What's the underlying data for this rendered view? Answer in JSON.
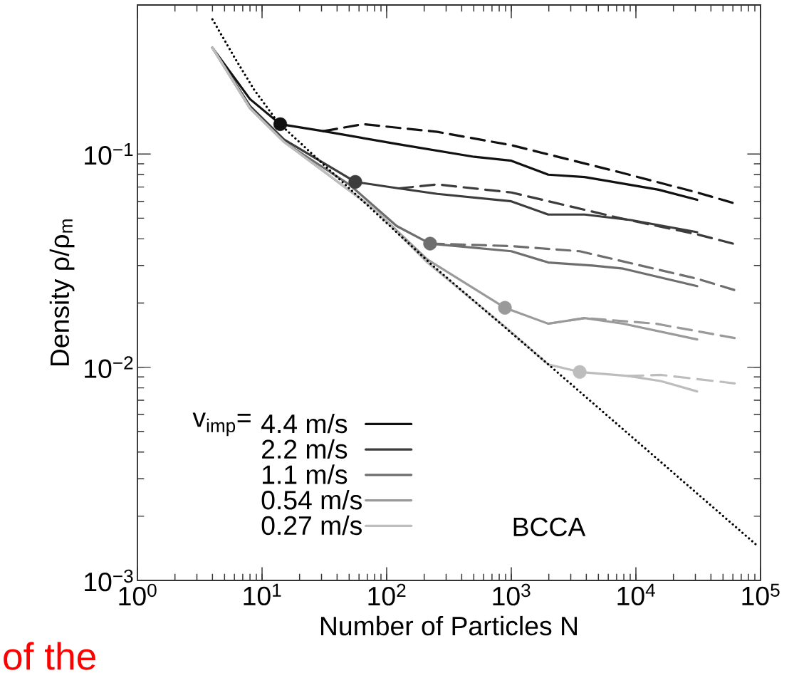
{
  "chart_data": {
    "type": "line",
    "xlabel": "Number of Particles N",
    "ylabel": "Density ρ/ρ$_{m}$",
    "legend_title": "v$_{imp}$=",
    "log": "xy",
    "xlim": [
      1,
      100000
    ],
    "ylim": [
      0.001,
      0.5
    ],
    "xticks": [
      {
        "value": 1,
        "label": "10$^{0}$"
      },
      {
        "value": 10,
        "label": "10$^{1}$"
      },
      {
        "value": 100,
        "label": "10$^{2}$"
      },
      {
        "value": 1000,
        "label": "10$^{3}$"
      },
      {
        "value": 10000,
        "label": "10$^{4}$"
      },
      {
        "value": 100000,
        "label": "10$^{5}$"
      }
    ],
    "yticks": [
      {
        "value": 0.001,
        "label": "10$^{−3}$"
      },
      {
        "value": 0.01,
        "label": "10$^{−2}$"
      },
      {
        "value": 0.1,
        "label": "10$^{−1}$"
      }
    ],
    "legend": "bottom left",
    "marker": "none",
    "series": [
      {
        "name": "4.4 m/s",
        "color": "#111111",
        "line_style": "solid",
        "x": [
          4,
          8,
          14,
          31,
          125,
          505,
          1000,
          1980,
          3880,
          7480,
          15200,
          31000
        ],
        "values": [
          0.315,
          0.181,
          0.138,
          0.128,
          0.111,
          0.097,
          0.093,
          0.08,
          0.078,
          0.073,
          0.068,
          0.061
        ]
      },
      {
        "name": "2.2 m/s",
        "color": "#3c3c3c",
        "line_style": "solid",
        "x": [
          4,
          8,
          15,
          31,
          56,
          125,
          255,
          1000,
          1980,
          3880,
          9100,
          31000
        ],
        "values": [
          0.315,
          0.168,
          0.117,
          0.091,
          0.074,
          0.069,
          0.065,
          0.06,
          0.052,
          0.052,
          0.049,
          0.043
        ]
      },
      {
        "name": "1.1 m/s",
        "color": "#6e6e6e",
        "line_style": "solid",
        "x": [
          4,
          8,
          15,
          50,
          120,
          223,
          1000,
          1980,
          4480,
          7900,
          31000
        ],
        "values": [
          0.315,
          0.164,
          0.114,
          0.072,
          0.046,
          0.038,
          0.035,
          0.031,
          0.03,
          0.029,
          0.024
        ]
      },
      {
        "name": "0.54 m/s",
        "color": "#9a9a9a",
        "line_style": "solid",
        "x": [
          4,
          8,
          15,
          32,
          77,
          212,
          889,
          1980,
          3880,
          7900,
          31000
        ],
        "values": [
          0.315,
          0.164,
          0.114,
          0.082,
          0.056,
          0.032,
          0.019,
          0.016,
          0.017,
          0.016,
          0.0135
        ]
      },
      {
        "name": "0.27 m/s",
        "color": "#bdbdbd",
        "line_style": "solid",
        "x": [
          4,
          8,
          15,
          32,
          77,
          212,
          889,
          1980,
          3540,
          8650,
          16000,
          31000
        ],
        "values": [
          0.315,
          0.164,
          0.114,
          0.082,
          0.056,
          0.031,
          0.0155,
          0.0103,
          0.0095,
          0.0091,
          0.0086,
          0.0077
        ]
      },
      {
        "color": "#111111",
        "line_style": "dashed",
        "x": [
          31,
          65,
          255,
          1000,
          7480,
          31000,
          60000
        ],
        "values": [
          0.128,
          0.138,
          0.127,
          0.11,
          0.082,
          0.066,
          0.059
        ]
      },
      {
        "color": "#3c3c3c",
        "line_style": "dashed",
        "x": [
          125,
          255,
          1000,
          2000,
          7480,
          31000,
          60000
        ],
        "values": [
          0.069,
          0.072,
          0.066,
          0.06,
          0.05,
          0.042,
          0.038
        ]
      },
      {
        "color": "#6e6e6e",
        "line_style": "dashed",
        "x": [
          223,
          1000,
          3540,
          31000,
          62000
        ],
        "values": [
          0.038,
          0.037,
          0.035,
          0.026,
          0.023
        ]
      },
      {
        "color": "#9a9a9a",
        "line_style": "dashed",
        "x": [
          1980,
          3880,
          14500,
          62000
        ],
        "values": [
          0.016,
          0.017,
          0.016,
          0.0137
        ]
      },
      {
        "color": "#bdbdbd",
        "line_style": "dashed",
        "x": [
          8650,
          16000,
          62000
        ],
        "values": [
          0.0091,
          0.0092,
          0.0084
        ]
      },
      {
        "color": "#000000",
        "line_style": "dotted",
        "x": [
          4,
          6.07,
          8.65,
          13.4,
          232,
          1983,
          91200
        ],
        "values": [
          0.428,
          0.281,
          0.2,
          0.141,
          0.0301,
          0.0103,
          0.00148
        ]
      },
      {
        "type": "scatter",
        "marker": "circle",
        "colors": [
          "#111111",
          "#3c3c3c",
          "#6e6e6e",
          "#9a9a9a",
          "#bdbdbd"
        ],
        "x": [
          14,
          56,
          223,
          889,
          3540
        ],
        "values": [
          0.138,
          0.074,
          0.038,
          0.019,
          0.0095
        ]
      }
    ],
    "annotations": [
      "BCCA",
      "of the"
    ]
  }
}
